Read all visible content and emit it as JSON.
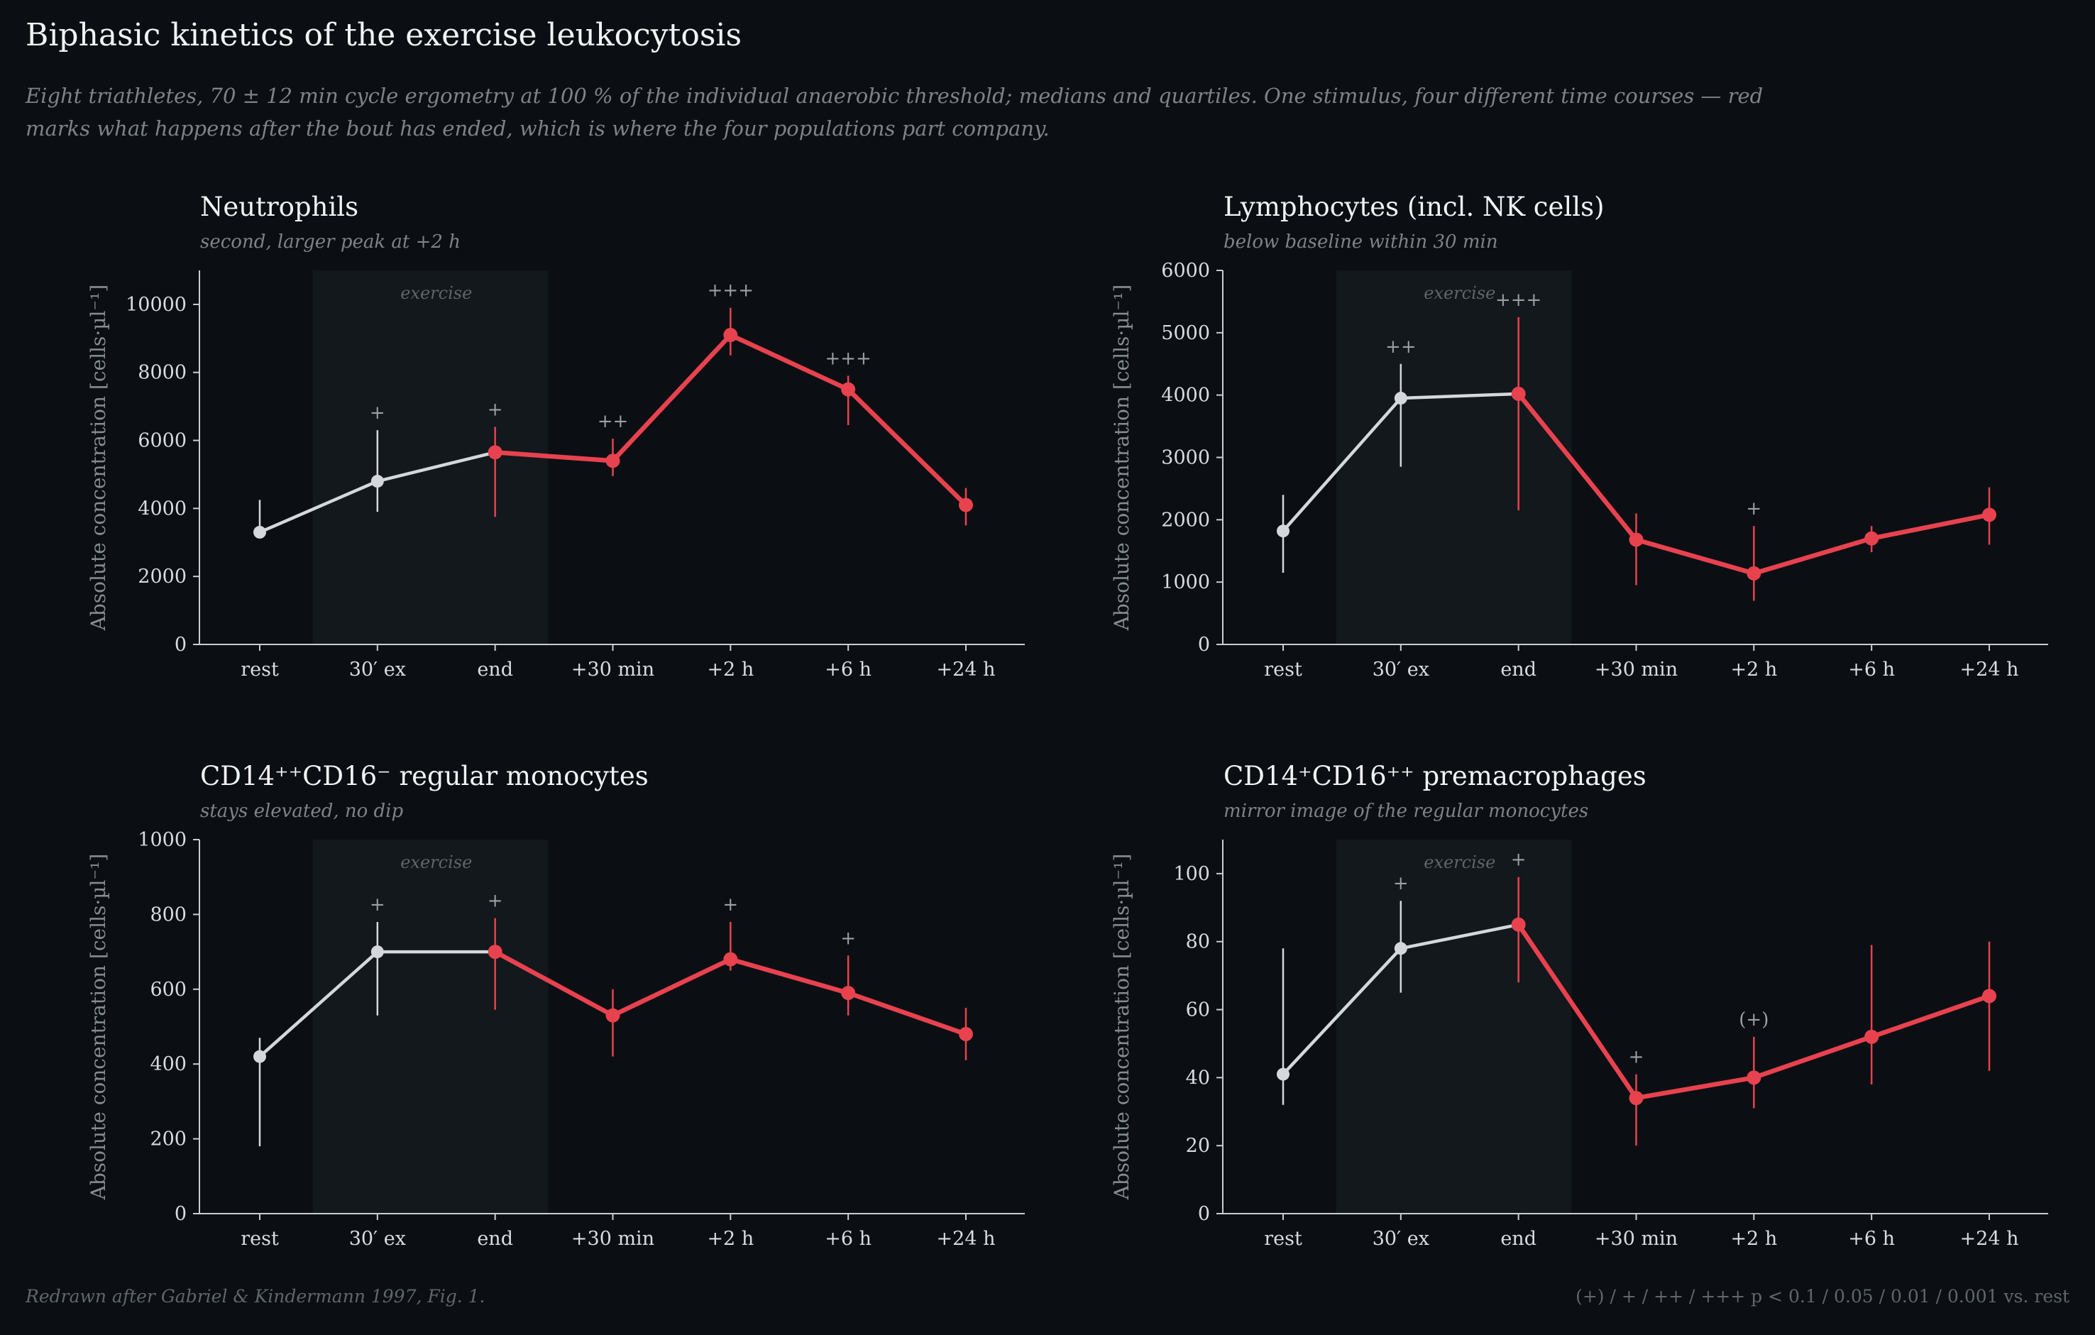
{
  "title": "Biphasic kinetics of the exercise leukocytosis",
  "subtitle": "Eight triathletes, 70 ± 12 min cycle ergometry at 100 % of the individual anaerobic threshold; medians and quartiles. One stimulus, four different time courses — red marks what happens after the bout has ended, which is where the four populations part company.",
  "footer": {
    "source": "Redrawn after Gabriel & Kindermann 1997, Fig. 1.",
    "significance_key": "(+) / + / ++ / +++   p < 0.1 / 0.05 / 0.01 / 0.001 vs. rest"
  },
  "colors": {
    "background": "#0b0f13",
    "exercise_series": "#d4d8dc",
    "post_exercise_series": "#e8424f",
    "exercise_band": "#12181c"
  },
  "chart_data": [
    {
      "type": "line",
      "title": "Neutrophils",
      "subtitle": "second, larger peak at +2 h",
      "ylabel": "Absolute concentration  [cells·µl⁻¹]",
      "categories": [
        "rest",
        "30′ ex",
        "end",
        "+30 min",
        "+2 h",
        "+6 h",
        "+24 h"
      ],
      "exercise_band": {
        "from": "30′ ex",
        "to": "end",
        "label": "exercise"
      },
      "ylim": [
        0,
        11000
      ],
      "yticks": [
        0,
        2000,
        4000,
        6000,
        8000,
        10000
      ],
      "median": [
        3300,
        4800,
        5650,
        5400,
        9100,
        7500,
        4100
      ],
      "q1": [
        3250,
        3900,
        3750,
        4950,
        8500,
        6450,
        3500
      ],
      "q3": [
        4250,
        6300,
        6400,
        6050,
        9900,
        7900,
        4600
      ],
      "significance": [
        "",
        "+",
        "+",
        "++",
        "+++",
        "+++",
        ""
      ],
      "red_from_index": 2
    },
    {
      "type": "line",
      "title": "Lymphocytes  (incl. NK cells)",
      "subtitle": "below baseline within 30 min",
      "ylabel": "Absolute concentration  [cells·µl⁻¹]",
      "categories": [
        "rest",
        "30′ ex",
        "end",
        "+30 min",
        "+2 h",
        "+6 h",
        "+24 h"
      ],
      "exercise_band": {
        "from": "30′ ex",
        "to": "end",
        "label": "exercise"
      },
      "ylim": [
        0,
        6000
      ],
      "yticks": [
        0,
        1000,
        2000,
        3000,
        4000,
        5000,
        6000
      ],
      "median": [
        1820,
        3950,
        4020,
        1680,
        1140,
        1700,
        2080
      ],
      "q1": [
        1150,
        2850,
        2150,
        950,
        700,
        1480,
        1600
      ],
      "q3": [
        2400,
        4500,
        5250,
        2100,
        1900,
        1900,
        2520
      ],
      "significance": [
        "",
        "++",
        "+++",
        "",
        "+",
        "",
        ""
      ],
      "red_from_index": 2
    },
    {
      "type": "line",
      "title": "CD14⁺⁺CD16⁻  regular monocytes",
      "subtitle": "stays elevated, no dip",
      "ylabel": "Absolute concentration  [cells·µl⁻¹]",
      "categories": [
        "rest",
        "30′ ex",
        "end",
        "+30 min",
        "+2 h",
        "+6 h",
        "+24 h"
      ],
      "exercise_band": {
        "from": "30′ ex",
        "to": "end",
        "label": "exercise"
      },
      "ylim": [
        0,
        1000
      ],
      "yticks": [
        0,
        200,
        400,
        600,
        800,
        1000
      ],
      "median": [
        420,
        700,
        700,
        530,
        680,
        590,
        480
      ],
      "q1": [
        180,
        530,
        545,
        420,
        650,
        530,
        410
      ],
      "q3": [
        470,
        780,
        790,
        600,
        780,
        690,
        550
      ],
      "significance": [
        "",
        "+",
        "+",
        "",
        "+",
        "+",
        ""
      ],
      "red_from_index": 2
    },
    {
      "type": "line",
      "title": "CD14⁺CD16⁺⁺  premacrophages",
      "subtitle": "mirror image of the regular monocytes",
      "ylabel": "Absolute concentration  [cells·µl⁻¹]",
      "categories": [
        "rest",
        "30′ ex",
        "end",
        "+30 min",
        "+2 h",
        "+6 h",
        "+24 h"
      ],
      "exercise_band": {
        "from": "30′ ex",
        "to": "end",
        "label": "exercise"
      },
      "ylim": [
        0,
        110
      ],
      "yticks": [
        0,
        20,
        40,
        60,
        80,
        100
      ],
      "median": [
        41,
        78,
        85,
        34,
        40,
        52,
        64
      ],
      "q1": [
        32,
        65,
        68,
        20,
        31,
        38,
        42
      ],
      "q3": [
        78,
        92,
        99,
        41,
        52,
        79,
        80
      ],
      "significance": [
        "",
        "+",
        "+",
        "+",
        "(+)",
        "",
        ""
      ],
      "red_from_index": 2
    }
  ]
}
